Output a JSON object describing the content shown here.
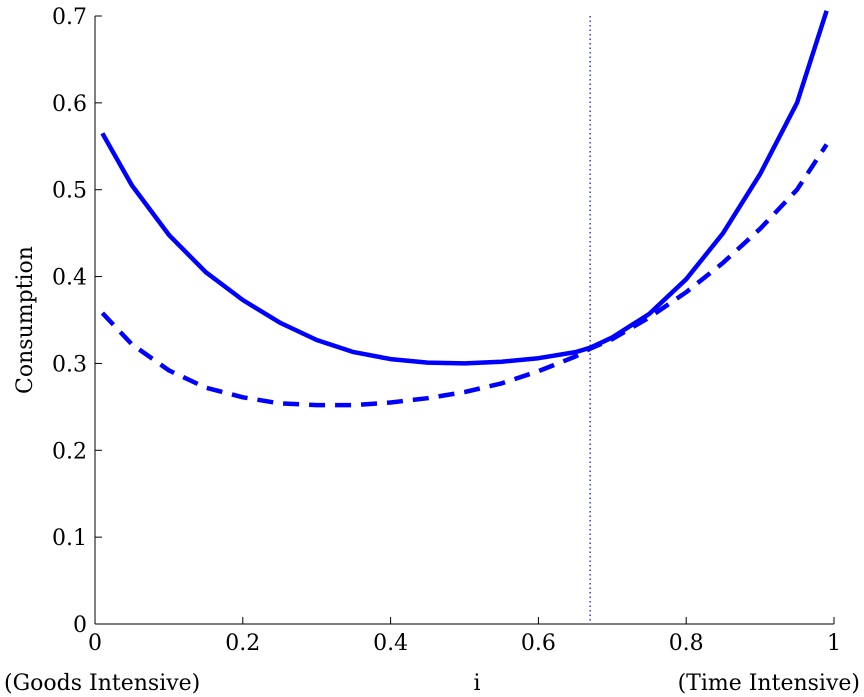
{
  "chart_data": {
    "type": "line",
    "title": "",
    "xlabel": "i",
    "ylabel": "Consumption",
    "x_end_annotations": {
      "left": "(Goods Intensive)",
      "right": "(Time Intensive)"
    },
    "xlim": [
      0,
      1
    ],
    "ylim": [
      0,
      0.7
    ],
    "xticks": [
      0,
      0.2,
      0.4,
      0.6,
      0.8,
      1
    ],
    "xtick_labels": [
      "0",
      "0.2",
      "0.4",
      "0.6",
      "0.8",
      "1"
    ],
    "yticks": [
      0,
      0.1,
      0.2,
      0.3,
      0.4,
      0.5,
      0.6,
      0.7
    ],
    "ytick_labels": [
      "0",
      "0.1",
      "0.2",
      "0.3",
      "0.4",
      "0.5",
      "0.6",
      "0.7"
    ],
    "grid": false,
    "legend": "none",
    "color": "#0000ff",
    "vertical_line": {
      "x": 0.67,
      "style": "dotted"
    },
    "series": [
      {
        "style": "solid",
        "x": [
          0.01,
          0.05,
          0.1,
          0.15,
          0.2,
          0.25,
          0.3,
          0.35,
          0.4,
          0.45,
          0.5,
          0.55,
          0.6,
          0.65,
          0.67,
          0.7,
          0.75,
          0.8,
          0.85,
          0.9,
          0.95,
          0.99
        ],
        "y": [
          0.565,
          0.505,
          0.448,
          0.405,
          0.373,
          0.347,
          0.327,
          0.313,
          0.305,
          0.301,
          0.3,
          0.302,
          0.306,
          0.313,
          0.318,
          0.33,
          0.357,
          0.397,
          0.45,
          0.518,
          0.6,
          0.706
        ]
      },
      {
        "style": "dashed",
        "x": [
          0.01,
          0.05,
          0.1,
          0.15,
          0.2,
          0.25,
          0.3,
          0.35,
          0.4,
          0.45,
          0.5,
          0.55,
          0.6,
          0.65,
          0.67,
          0.7,
          0.75,
          0.8,
          0.85,
          0.9,
          0.95,
          0.99
        ],
        "y": [
          0.358,
          0.322,
          0.292,
          0.272,
          0.261,
          0.254,
          0.252,
          0.252,
          0.255,
          0.26,
          0.267,
          0.277,
          0.291,
          0.308,
          0.317,
          0.328,
          0.353,
          0.382,
          0.416,
          0.455,
          0.5,
          0.552
        ]
      }
    ]
  }
}
